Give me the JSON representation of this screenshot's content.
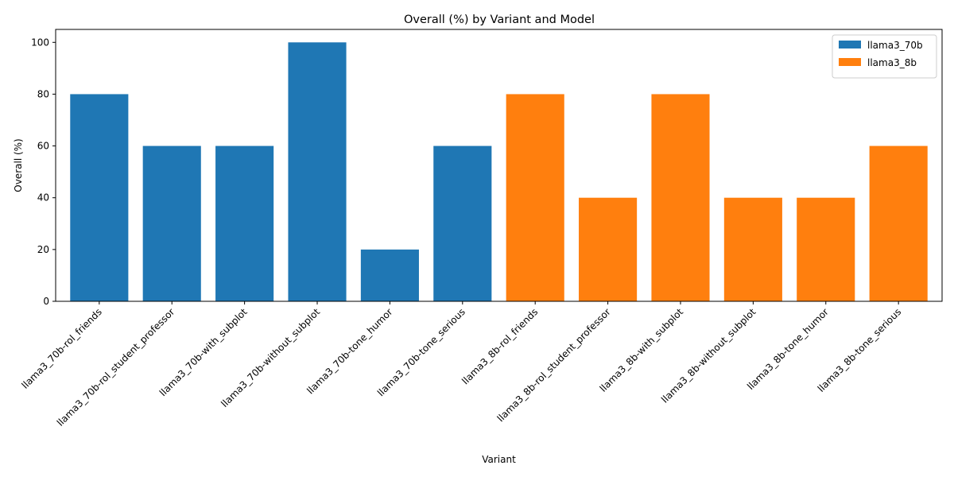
{
  "chart_data": {
    "type": "bar",
    "title": "Overall (%) by Variant and Model",
    "xlabel": "Variant",
    "ylabel": "Overall (%)",
    "ylim": [
      0,
      105
    ],
    "yticks": [
      0,
      20,
      40,
      60,
      80,
      100
    ],
    "grid": false,
    "legend_position": "top-right",
    "categories": [
      "llama3_70b-rol_friends",
      "llama3_70b-rol_student_professor",
      "llama3_70b-with_subplot",
      "llama3_70b-without_subplot",
      "llama3_70b-tone_humor",
      "llama3_70b-tone_serious",
      "llama3_8b-rol_friends",
      "llama3_8b-rol_student_professor",
      "llama3_8b-with_subplot",
      "llama3_8b-without_subplot",
      "llama3_8b-tone_humor",
      "llama3_8b-tone_serious"
    ],
    "values": [
      80,
      60,
      60,
      100,
      20,
      60,
      80,
      40,
      80,
      40,
      40,
      60
    ],
    "series": [
      {
        "name": "llama3_70b",
        "color": "#1f77b4",
        "categories": [
          0,
          1,
          2,
          3,
          4,
          5
        ]
      },
      {
        "name": "llama3_8b",
        "color": "#ff7f0e",
        "categories": [
          6,
          7,
          8,
          9,
          10,
          11
        ]
      }
    ]
  }
}
